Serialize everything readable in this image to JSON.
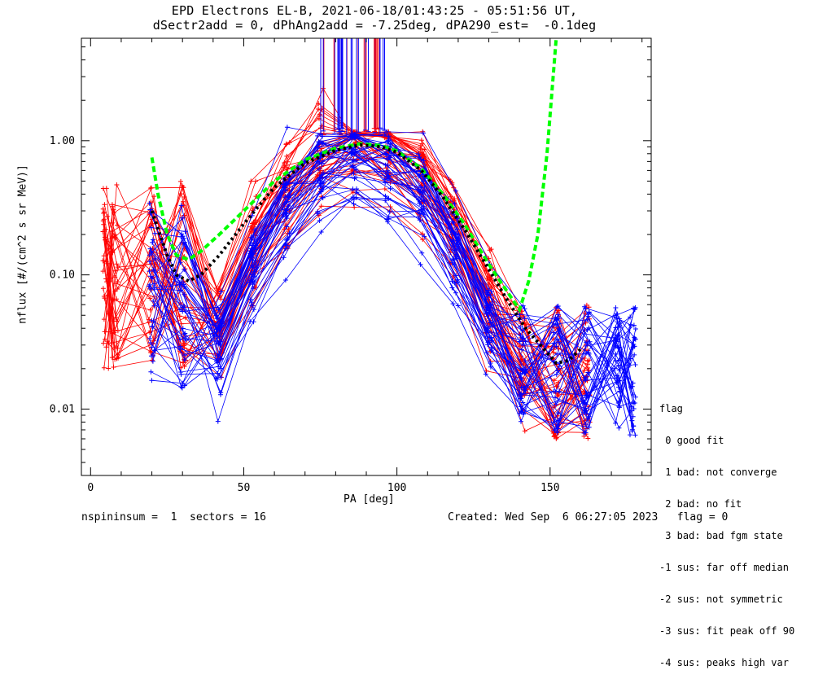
{
  "title": {
    "line1": "EPD Electrons EL-B, 2021-06-18/01:43:25 - 05:51:56 UT,",
    "line2": "dSectr2add = 0, dPhAng2add = -7.25deg, dPA290_est=  -0.1deg"
  },
  "footer": {
    "left": "nspininsum =  1  sectors = 16",
    "right": "Created: Wed Sep  6 06:27:05 2023   flag = 0"
  },
  "legend": {
    "title": "flag",
    "items": [
      " 0 good fit",
      " 1 bad: not converge",
      " 2 bad: no fit",
      " 3 bad: bad fgm state",
      "-1 sus: far off median",
      "-2 sus: not symmetric",
      "-3 sus: fit peak off 90",
      "-4 sus: peaks high var"
    ]
  },
  "colors": {
    "red": "#ff0000",
    "blue": "#0000ff",
    "green": "#00ff00",
    "black": "#000000"
  },
  "chart_data": {
    "type": "line",
    "xlabel": "PA [deg]",
    "ylabel": "nflux [#/(cm^2 s sr MeV)]",
    "xlim": [
      -3,
      183
    ],
    "ylim": [
      0.0032,
      5.8
    ],
    "ylog": true,
    "xticks": [
      0,
      50,
      100,
      150
    ],
    "yticks": [
      0.01,
      0.1,
      1.0
    ],
    "ytick_labels": [
      "0.01",
      "0.10",
      "1.00"
    ],
    "sectors": 16,
    "red_series_count": 40,
    "blue_series_count": 40,
    "red_pa": [
      5,
      8,
      20,
      30,
      42,
      53,
      64,
      75,
      86,
      97,
      108,
      118,
      130,
      141,
      152,
      162
    ],
    "blue_pa": [
      20,
      30,
      42,
      53,
      64,
      75,
      86,
      97,
      108,
      119,
      130,
      141,
      152,
      162,
      172,
      177
    ],
    "fits": [
      {
        "name": "green",
        "style": "dashed",
        "x": [
          20,
          22,
          25,
          28,
          32,
          36,
          42,
          50,
          60,
          70,
          80,
          88,
          95,
          100,
          108,
          115,
          122,
          130,
          136,
          140,
          143,
          146,
          149,
          152
        ],
        "y": [
          0.75,
          0.4,
          0.2,
          0.14,
          0.13,
          0.15,
          0.2,
          0.3,
          0.5,
          0.72,
          0.88,
          0.95,
          0.92,
          0.84,
          0.62,
          0.4,
          0.24,
          0.12,
          0.075,
          0.055,
          0.09,
          0.2,
          0.8,
          5.8
        ]
      },
      {
        "name": "black",
        "style": "dotted",
        "x": [
          20,
          22,
          25,
          28,
          32,
          36,
          42,
          50,
          60,
          70,
          80,
          88,
          95,
          100,
          108,
          115,
          122,
          130,
          136,
          142,
          148,
          152,
          156,
          160
        ],
        "y": [
          0.3,
          0.22,
          0.14,
          0.1,
          0.09,
          0.1,
          0.14,
          0.24,
          0.45,
          0.68,
          0.85,
          0.93,
          0.9,
          0.82,
          0.6,
          0.38,
          0.22,
          0.11,
          0.065,
          0.04,
          0.028,
          0.022,
          0.023,
          0.028
        ]
      }
    ]
  }
}
